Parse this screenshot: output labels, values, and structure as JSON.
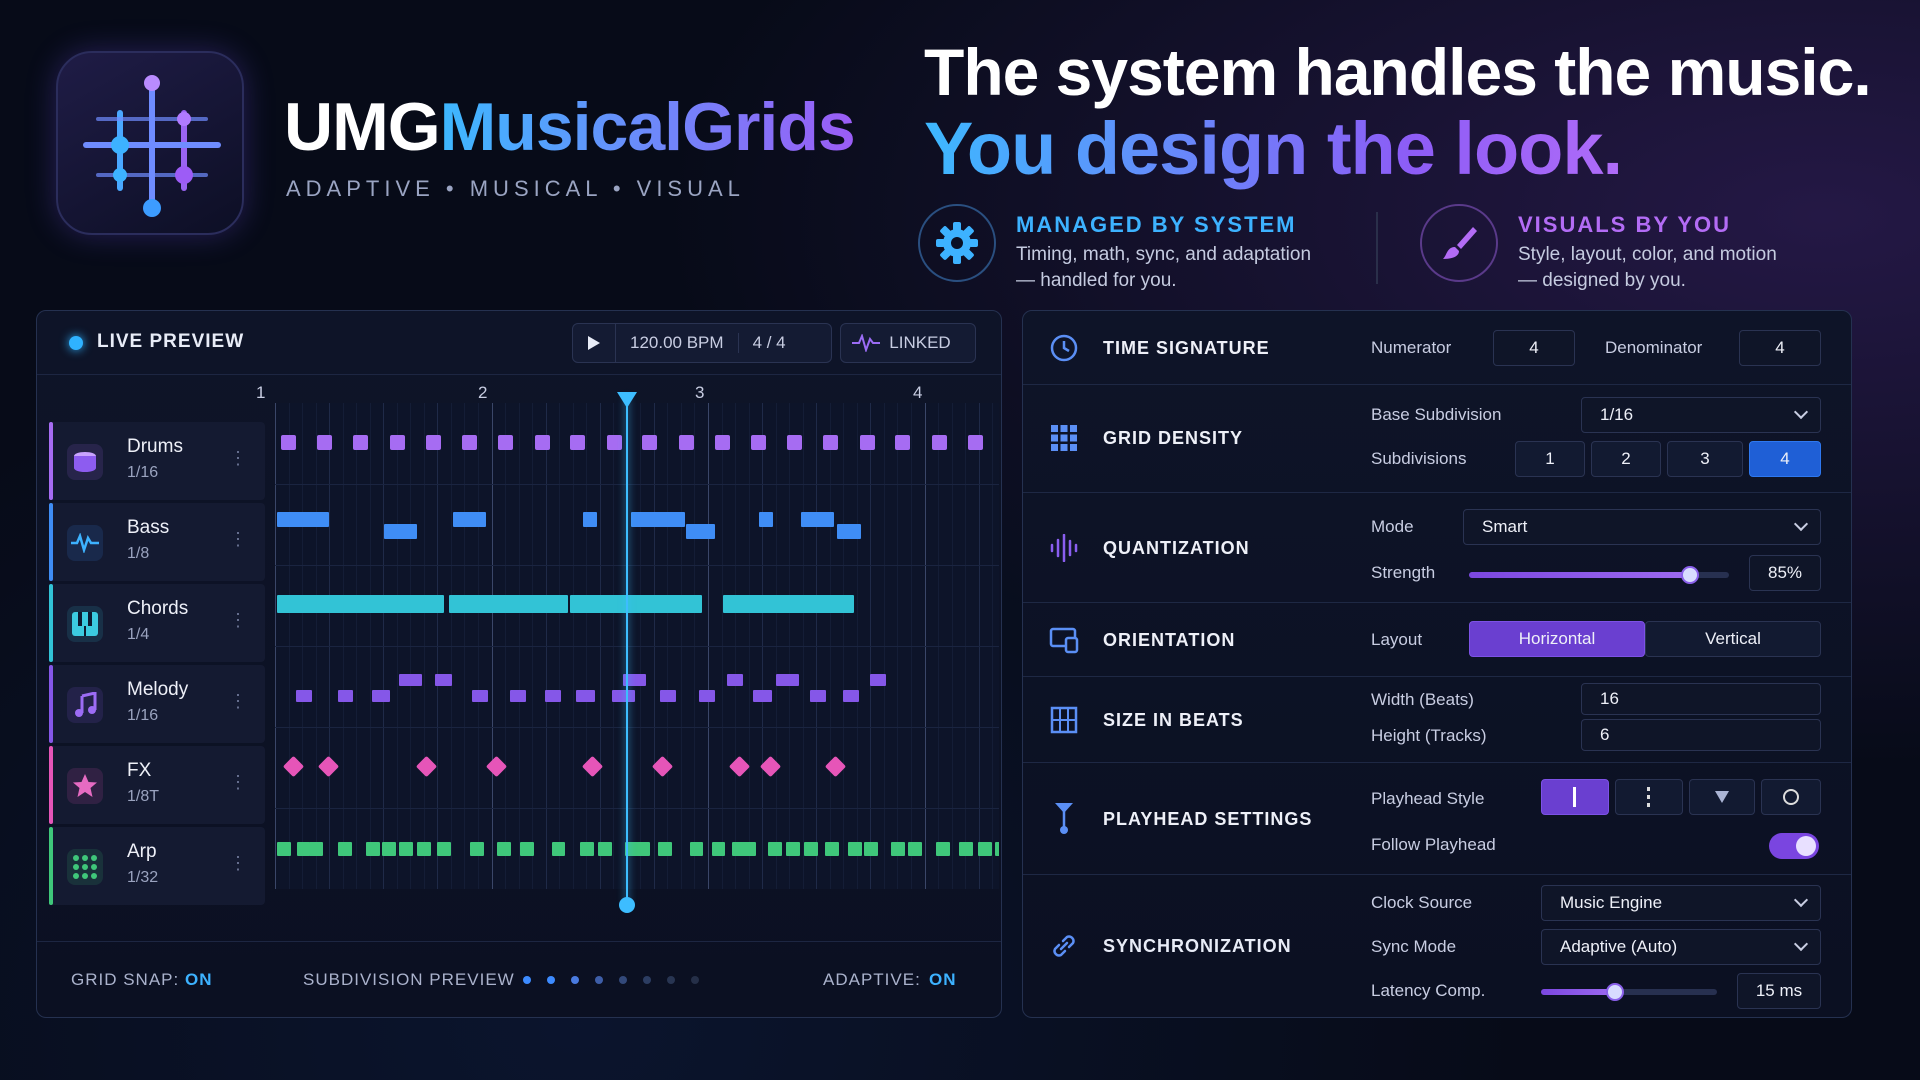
{
  "brand": {
    "name_white": "UMG",
    "name_gradient": "MusicalGrids",
    "tagline": "ADAPTIVE • MUSICAL • VISUAL"
  },
  "headline": {
    "line1": "The system handles the music.",
    "line2": "You design the look."
  },
  "features": [
    {
      "title": "MANAGED BY SYSTEM",
      "desc1": "Timing, math, sync, and adaptation",
      "desc2": "— handled for you.",
      "icon": "gear-icon",
      "color": "#3db2ff"
    },
    {
      "title": "VISUALS BY YOU",
      "desc1": "Style, layout, color, and motion",
      "desc2": "— designed by you.",
      "icon": "brush-icon",
      "color": "#b36cf5"
    }
  ],
  "preview": {
    "title": "LIVE PREVIEW",
    "tempo": "120.00 BPM",
    "meter": "4 / 4",
    "link": "LINKED",
    "ruler": [
      "1",
      "2",
      "3",
      "4"
    ],
    "playhead_position_beats": 2.45,
    "tracks": [
      {
        "name": "Drums",
        "sub": "1/16",
        "color": "#a66cf2",
        "icon": "drum-icon"
      },
      {
        "name": "Bass",
        "sub": "1/8",
        "color": "#3f8df5",
        "icon": "waveform-icon"
      },
      {
        "name": "Chords",
        "sub": "1/4",
        "color": "#32c3d6",
        "icon": "piano-icon"
      },
      {
        "name": "Melody",
        "sub": "1/16",
        "color": "#8557e8",
        "icon": "music-note-icon"
      },
      {
        "name": "FX",
        "sub": "1/8T",
        "color": "#e655b8",
        "icon": "star-icon"
      },
      {
        "name": "Arp",
        "sub": "1/32",
        "color": "#3fc77a",
        "icon": "dots-grid-icon"
      }
    ],
    "footer": {
      "snap_label": "GRID SNAP:",
      "snap_value": "ON",
      "subdiv_label": "SUBDIVISION PREVIEW",
      "adaptive_label": "ADAPTIVE:",
      "adaptive_value": "ON"
    }
  },
  "settings": {
    "time_signature": {
      "title": "TIME SIGNATURE",
      "numerator_label": "Numerator",
      "numerator": "4",
      "denominator_label": "Denominator",
      "denominator": "4"
    },
    "grid_density": {
      "title": "GRID DENSITY",
      "base_label": "Base Subdivision",
      "base_value": "1/16",
      "subdiv_label": "Subdivisions",
      "options": [
        "1",
        "2",
        "3",
        "4"
      ],
      "selected": "4"
    },
    "quantization": {
      "title": "QUANTIZATION",
      "mode_label": "Mode",
      "mode_value": "Smart",
      "strength_label": "Strength",
      "strength_value": "85%",
      "strength": 0.85
    },
    "orientation": {
      "title": "ORIENTATION",
      "layout_label": "Layout",
      "options": [
        "Horizontal",
        "Vertical"
      ],
      "selected": "Horizontal"
    },
    "size": {
      "title": "SIZE IN BEATS",
      "width_label": "Width (Beats)",
      "width_value": "16",
      "height_label": "Height (Tracks)",
      "height_value": "6"
    },
    "playhead": {
      "title": "PLAYHEAD SETTINGS",
      "style_label": "Playhead Style",
      "follow_label": "Follow Playhead",
      "follow": true
    },
    "sync": {
      "title": "SYNCHRONIZATION",
      "clock_label": "Clock Source",
      "clock_value": "Music Engine",
      "mode_label": "Sync Mode",
      "mode_value": "Adaptive (Auto)",
      "latency_label": "Latency Comp.",
      "latency_value": "15 ms",
      "latency": 0.42
    }
  }
}
